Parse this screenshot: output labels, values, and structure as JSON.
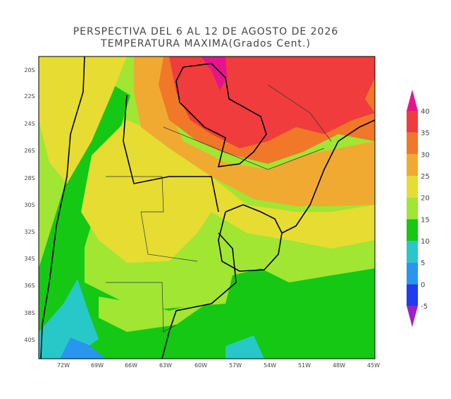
{
  "title": "PERSPECTIVA DEL 6 AL 12 DE AGOSTO DE 2026",
  "subtitle": "TEMPERATURA MAXIMA(Grados Cent.)",
  "lon_ticks": [
    "72W",
    "69W",
    "66W",
    "63W",
    "60W",
    "57W",
    "54W",
    "51W",
    "48W",
    "45W"
  ],
  "lat_ticks": [
    "20S",
    "22S",
    "24S",
    "26S",
    "28S",
    "30S",
    "32S",
    "34S",
    "36S",
    "38S",
    "40S"
  ],
  "colorbar": {
    "levels": [
      -5,
      0,
      5,
      10,
      15,
      20,
      25,
      30,
      35,
      40
    ],
    "colors": [
      "#a020c8",
      "#1e3cf0",
      "#2896f0",
      "#28c8c8",
      "#14c814",
      "#a0e632",
      "#e6dc32",
      "#f0aa32",
      "#f07828",
      "#f03c3c",
      "#e6148c"
    ]
  }
}
